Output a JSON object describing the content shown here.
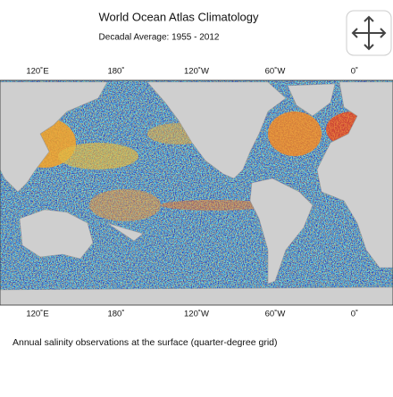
{
  "header": {
    "title": "World Ocean Atlas Climatology",
    "subtitle": "Decadal Average: 1955 - 2012"
  },
  "map": {
    "top_labels": [
      "120˚E",
      "180˚",
      "120˚W",
      "60˚W",
      "0˚"
    ],
    "bottom_labels": [
      "120˚E",
      "180˚",
      "120˚W",
      "60˚W",
      "0˚"
    ]
  },
  "caption": "Annual salinity  observations at the surface (quarter-degree grid)"
}
